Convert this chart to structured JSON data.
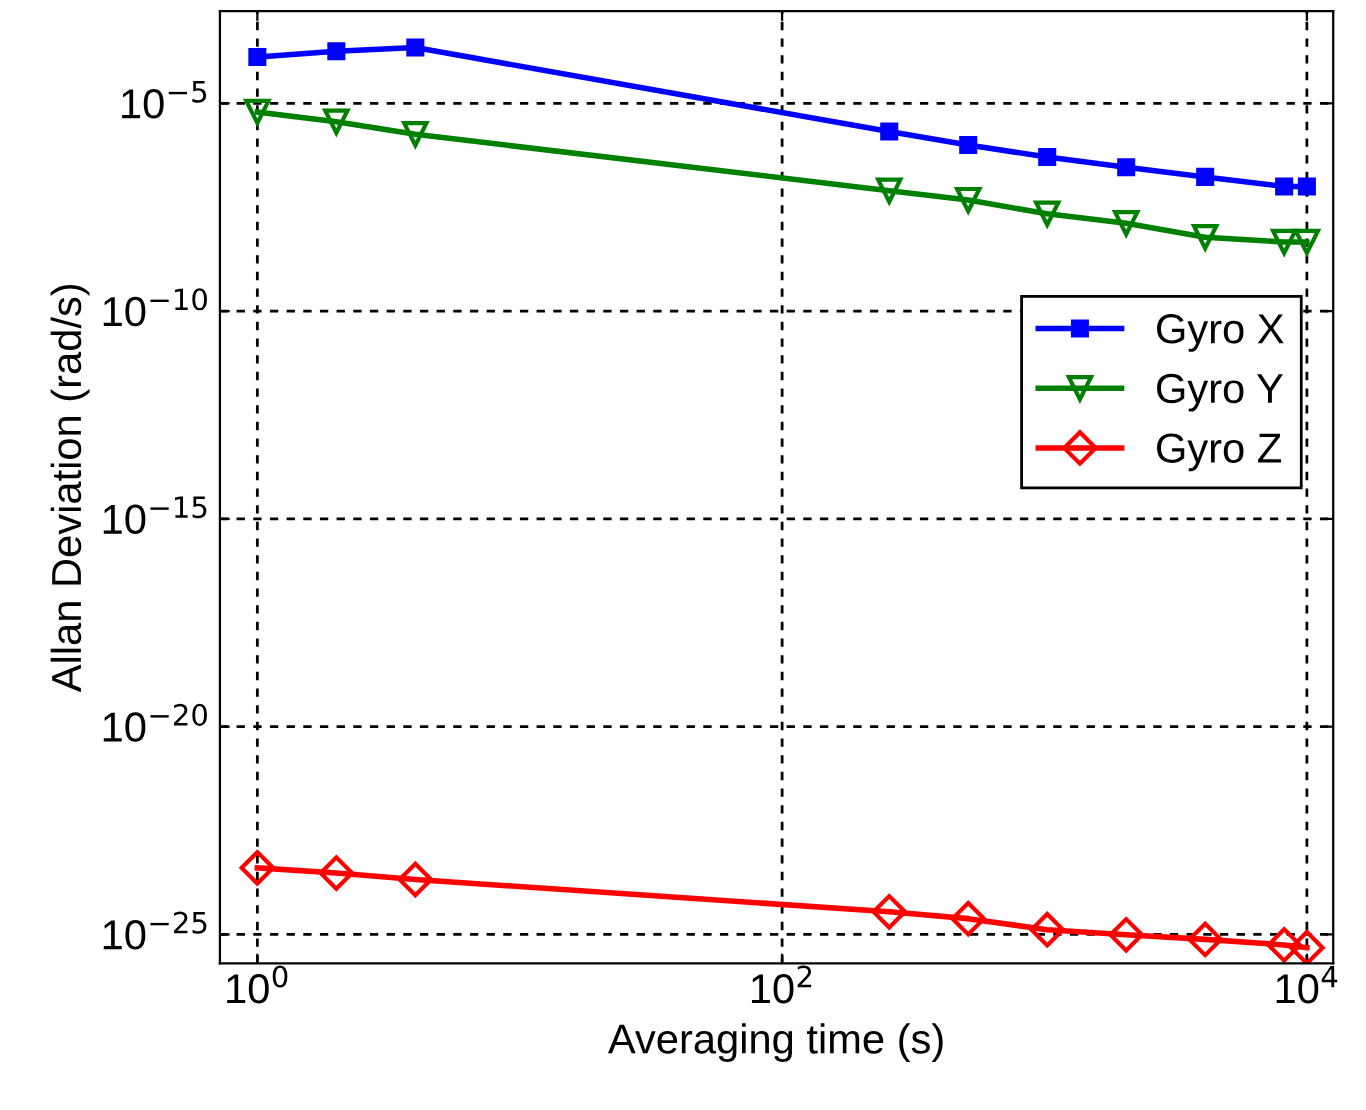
{
  "chart_data": {
    "type": "line",
    "xlabel": "Averaging time (s)",
    "ylabel": "Allan Deviation (rad/s)",
    "x": [
      1,
      2,
      4,
      256,
      512,
      1024,
      2048,
      4096,
      8192,
      10000
    ],
    "series": [
      {
        "name": "Gyro X",
        "color": "#0000ff",
        "marker": "square",
        "values": [
          0.00013,
          0.00018,
          0.00022,
          2.1e-06,
          1e-06,
          5.1e-07,
          2.9e-07,
          1.7e-07,
          1e-07,
          1e-07
        ]
      },
      {
        "name": "Gyro Y",
        "color": "#008000",
        "marker": "triangle",
        "values": [
          6.2e-06,
          3.6e-06,
          1.8e-06,
          7.9e-08,
          4.7e-08,
          2.2e-08,
          1.3e-08,
          6e-09,
          4.6e-09,
          4.6e-09
        ]
      },
      {
        "name": "Gyro Z",
        "color": "#ff0000",
        "marker": "diamond",
        "values": [
          4e-24,
          3e-24,
          2.1e-24,
          3.5e-25,
          2.4e-25,
          1.3e-25,
          9.8e-26,
          7.6e-26,
          5.6e-26,
          4.8e-26
        ]
      }
    ],
    "log": "xy",
    "xlim": [
      0.72,
      12600
    ],
    "ylim": [
      2e-26,
      0.00166
    ],
    "xticks": [
      {
        "value": 1,
        "label": "10$^{0}$"
      },
      {
        "value": 100,
        "label": "10$^{2}$"
      },
      {
        "value": 10000,
        "label": "10$^{4}$"
      }
    ],
    "yticks": [
      {
        "value": 1e-25,
        "label": "10$^{−25}$"
      },
      {
        "value": 1e-20,
        "label": "10$^{−20}$"
      },
      {
        "value": 1e-15,
        "label": "10$^{−15}$"
      },
      {
        "value": 1e-10,
        "label": "10$^{−10}$"
      },
      {
        "value": 1e-05,
        "label": "10$^{−5}$"
      }
    ],
    "grid": true,
    "line_style": "solid",
    "legend": "right"
  }
}
